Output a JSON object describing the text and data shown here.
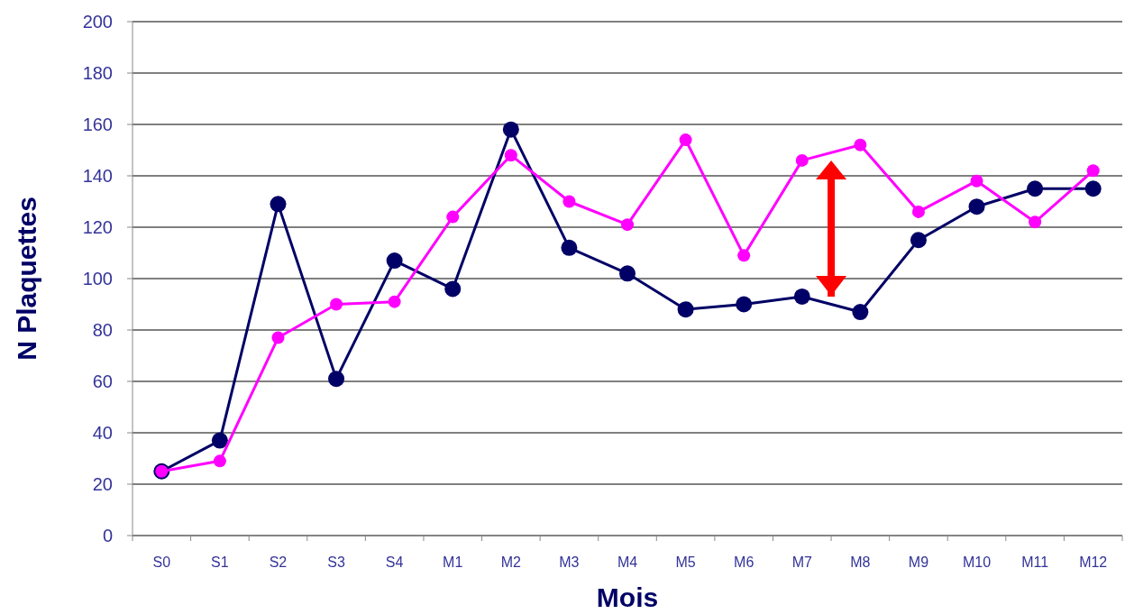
{
  "chart_data": {
    "type": "line",
    "xlabel": "Mois",
    "ylabel": "N Plaquettes",
    "categories": [
      "S0",
      "S1",
      "S2",
      "S3",
      "S4",
      "M1",
      "M2",
      "M3",
      "M4",
      "M5",
      "M6",
      "M7",
      "M8",
      "M9",
      "M10",
      "M11",
      "M12"
    ],
    "series": [
      {
        "color": "#000066",
        "values": [
          25,
          37,
          129,
          61,
          107,
          96,
          158,
          112,
          102,
          88,
          90,
          93,
          87,
          115,
          128,
          135,
          135
        ]
      },
      {
        "color": "#ff00ff",
        "values": [
          25,
          29,
          77,
          90,
          91,
          124,
          148,
          130,
          121,
          154,
          109,
          146,
          152,
          126,
          138,
          122,
          142
        ]
      }
    ],
    "ylim": [
      0,
      200
    ],
    "yticks": [
      0,
      20,
      40,
      60,
      80,
      100,
      120,
      140,
      160,
      180,
      200
    ],
    "grid": "y",
    "marker": "circle",
    "line_style": "solid"
  }
}
